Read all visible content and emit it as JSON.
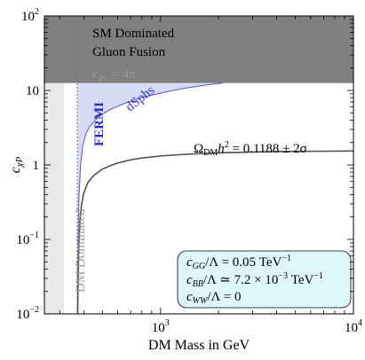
{
  "chart_data": {
    "type": "line",
    "xlabel": "DM Mass in GeV",
    "ylabel": "c_χP",
    "xscale": "log",
    "yscale": "log",
    "xlim": [
      250,
      10000
    ],
    "ylim": [
      0.01,
      100
    ],
    "x_ticks": [
      {
        "value": 1000,
        "label": "10",
        "exp": "3"
      },
      {
        "value": 10000,
        "label": "10",
        "exp": "4"
      }
    ],
    "y_ticks": [
      {
        "value": 100,
        "label": "10",
        "exp": "2"
      },
      {
        "value": 10,
        "label": "10",
        "exp": ""
      },
      {
        "value": 1,
        "label": "1",
        "exp": ""
      },
      {
        "value": 0.1,
        "label": "10",
        "exp": "−1"
      },
      {
        "value": 0.01,
        "label": "10",
        "exp": "−2"
      }
    ],
    "grid": false,
    "regions": [
      {
        "name": "SM Dominated",
        "label1": "SM Dominated",
        "label2": "Gluon Fusion",
        "color": "#7f7f7f",
        "y_min": 12.57,
        "y_max": 100
      },
      {
        "name": "DM Dominated",
        "label": "DM Dominated",
        "color": "#e8e8e8",
        "x_min": 250,
        "x_max": 315
      },
      {
        "name": "FERMI dSphs",
        "label": "FERMI",
        "sublabel": "dSphs",
        "color": "#d6dcf5",
        "edge_color": "#5555cc"
      }
    ],
    "annotations": {
      "cxs_label": "c",
      "cxs_sub": "χS",
      "cxs_value": " = 4π",
      "omega_label": "Ω",
      "omega_sub": "DM",
      "omega_rest1": "h",
      "omega_sup": "2",
      "omega_rest2": " = 0.1188 ± 2σ"
    },
    "threshold_x": 370,
    "threshold_y": 12.57,
    "series": [
      {
        "name": "Ω_DM h² = 0.1188 ± 2σ",
        "color": "#505050",
        "x": [
          372,
          373,
          375,
          378,
          382,
          390,
          400,
          420,
          450,
          500,
          550,
          600,
          700,
          800,
          1000,
          1300,
          1700,
          2200,
          3000,
          4000,
          5500,
          7500,
          10000
        ],
        "y": [
          0.01,
          0.02,
          0.05,
          0.1,
          0.18,
          0.3,
          0.42,
          0.58,
          0.72,
          0.88,
          0.98,
          1.06,
          1.17,
          1.24,
          1.32,
          1.38,
          1.43,
          1.46,
          1.49,
          1.51,
          1.52,
          1.53,
          1.54
        ]
      },
      {
        "name": "FERMI dSphs",
        "color": "#5555cc",
        "x": [
          372,
          374,
          378,
          385,
          395,
          410,
          430,
          460,
          500,
          560,
          650,
          800,
          1000,
          1300,
          1700,
          2100
        ],
        "y": [
          0.01,
          0.1,
          0.4,
          1.0,
          1.8,
          2.6,
          3.3,
          4.0,
          4.8,
          5.7,
          6.7,
          8.0,
          9.2,
          10.6,
          11.8,
          12.57
        ]
      }
    ],
    "legend_box": {
      "line1_a": "c",
      "line1_sub": "GG",
      "line1_b": "/Λ = 0.05 TeV",
      "line1_sup": "−1",
      "line2_a": "c",
      "line2_sub": "BB",
      "line2_b": "/Λ ≃ 7.2 × 10",
      "line2_sup1": "−3",
      "line2_c": " TeV",
      "line2_sup2": "−1",
      "line3_a": "c",
      "line3_sub": "WW",
      "line3_b": "/Λ = 0",
      "fill": "#dff7f9"
    }
  }
}
